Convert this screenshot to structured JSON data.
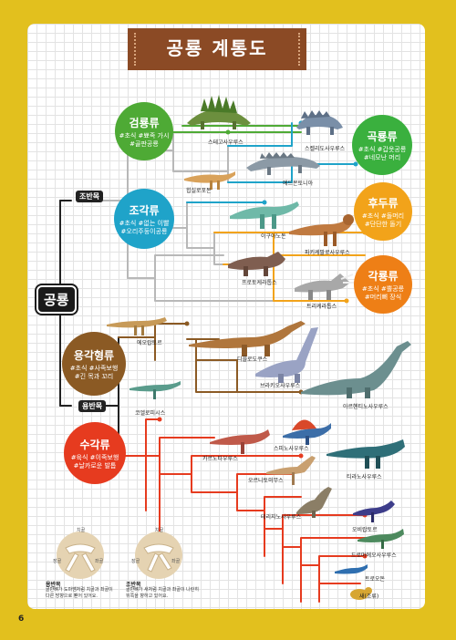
{
  "title": "공룡 계통도",
  "page_number": "6",
  "root": "공룡",
  "branch_tags": {
    "ornithischia": "조반목",
    "saurischia": "용반목"
  },
  "groups": {
    "thyreophora": {
      "name": "검룡류",
      "desc1": "#초식 #뾰족 가시",
      "desc2": "#골판공룡",
      "color": "#4eaa35"
    },
    "ornithopoda": {
      "name": "조각류",
      "desc1": "#초식 #없는 이빨",
      "desc2": "#오리주둥이공룡",
      "color": "#1fa3c9"
    },
    "marginocephalia_cap": {
      "name": "곡룡류",
      "desc1": "#초식 #갑옷공룡",
      "desc2": "#네모난 머리",
      "color": "#3ab03e"
    },
    "pachy": {
      "name": "후두류",
      "desc1": "#초식 #돌머리",
      "desc2": "#단단한 돌기",
      "color": "#f2a31a"
    },
    "ceratopsia": {
      "name": "각룡류",
      "desc1": "#초식 #뿔공룡",
      "desc2": "#머리뼈 장식",
      "color": "#ee7f16"
    },
    "sauropoda": {
      "name": "용각형류",
      "desc1": "#초식 #사족보행",
      "desc2": "#긴 목과 꼬리",
      "color": "#8b5a24"
    },
    "theropoda": {
      "name": "수각류",
      "desc1": "#육식 #이족보행",
      "desc2": "#날카로운 발톱",
      "color": "#e63b1f"
    }
  },
  "species": {
    "stegosaurus": "스테고사우루스",
    "scelidosaurus": "스켈리도사우루스",
    "edmontonia": "에드몬토니아",
    "hypsilophodon": "힙실로포돈",
    "iguanodon": "이구아노돈",
    "pachycephalosaurus": "파키케팔로사우루스",
    "protoceratops": "프로토케라톱스",
    "triceratops": "트리케라톱스",
    "eoraptor": "에오랍토르",
    "diplodocus": "디플로도쿠스",
    "brachiosaurus": "브라키오사우루스",
    "argentinosaurus": "아르헨티노사우루스",
    "coelophysis": "코엘로피시스",
    "spinosaurus": "스피노사우루스",
    "carnotaurus": "카르노타우루스",
    "tyrannosaurus": "티라노사우루스",
    "ornithomimus": "오르니토미무스",
    "therizinosaurus": "테리지노사우루스",
    "oviraptor": "오비랍토르",
    "dromaeosaurus": "드로마에오사우루스",
    "troodon": "트로오돈",
    "bird": "새(조류)"
  },
  "hip_section": {
    "saurischia_title": "용반목",
    "saurischia_desc": "골반뼈가 도마뱀처럼 치골과 좌골이 다른 방향으로 뻗어 있어요.",
    "ornithischia_title": "조반목",
    "ornithischia_desc": "골반뼈가 새처럼 치골과 좌골이 나란히 뒤쪽을 향하고 있어요.",
    "labels_left": [
      "치골",
      "장골",
      "좌골"
    ],
    "labels_right": [
      "치골",
      "장골",
      "좌골"
    ]
  },
  "colors": {
    "background": "#e2c01e",
    "title_banner": "#8b4a25",
    "line_gray": "#b8b8b8",
    "line_green": "#4eaa35",
    "line_teal": "#1fa3c9",
    "line_orange": "#f2a31a",
    "line_brown": "#8b5a24",
    "line_red": "#e63b1f"
  }
}
